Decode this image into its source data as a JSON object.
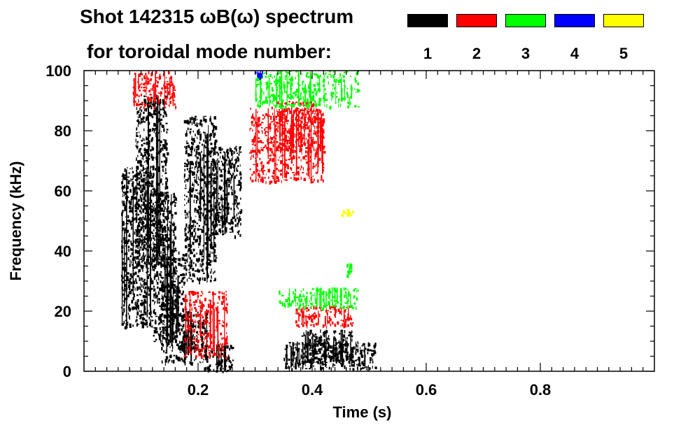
{
  "chart_data": {
    "type": "heatmap",
    "title_line1": "Shot 142315 ωB(ω) spectrum",
    "title_line2": "for toroidal mode number:",
    "xlabel": "Time (s)",
    "ylabel": "Frequency (kHz)",
    "xlim": [
      0.0,
      1.0
    ],
    "ylim": [
      0,
      100
    ],
    "x_ticks": [
      0.2,
      0.4,
      0.6,
      0.8
    ],
    "x_tick_labels": [
      "0.2",
      "0.4",
      "0.6",
      "0.8"
    ],
    "y_ticks": [
      0,
      20,
      40,
      60,
      80,
      100
    ],
    "y_tick_labels": [
      "0",
      "20",
      "40",
      "60",
      "80",
      "100"
    ],
    "grid": false,
    "legend_position": "top-right",
    "legend": [
      {
        "label": "1",
        "color": "#000000"
      },
      {
        "label": "2",
        "color": "#ff0000"
      },
      {
        "label": "3",
        "color": "#00ff00"
      },
      {
        "label": "4",
        "color": "#0000ff"
      },
      {
        "label": "5",
        "color": "#ffff00"
      }
    ],
    "regions": [
      {
        "mode": 1,
        "t": [
          0.065,
          0.12
        ],
        "f": [
          15,
          68
        ]
      },
      {
        "mode": 1,
        "t": [
          0.09,
          0.145
        ],
        "f": [
          35,
          92
        ]
      },
      {
        "mode": 1,
        "t": [
          0.12,
          0.16
        ],
        "f": [
          10,
          60
        ]
      },
      {
        "mode": 1,
        "t": [
          0.135,
          0.175
        ],
        "f": [
          3,
          40
        ]
      },
      {
        "mode": 1,
        "t": [
          0.175,
          0.23
        ],
        "f": [
          30,
          85
        ]
      },
      {
        "mode": 1,
        "t": [
          0.22,
          0.275
        ],
        "f": [
          45,
          75
        ]
      },
      {
        "mode": 1,
        "t": [
          0.17,
          0.215
        ],
        "f": [
          3,
          20
        ]
      },
      {
        "mode": 1,
        "t": [
          0.21,
          0.26
        ],
        "f": [
          0,
          9
        ]
      },
      {
        "mode": 1,
        "t": [
          0.35,
          0.51
        ],
        "f": [
          1,
          10
        ]
      },
      {
        "mode": 1,
        "t": [
          0.38,
          0.47
        ],
        "f": [
          3,
          14
        ]
      },
      {
        "mode": 2,
        "t": [
          0.085,
          0.16
        ],
        "f": [
          88,
          100
        ]
      },
      {
        "mode": 2,
        "t": [
          0.29,
          0.42
        ],
        "f": [
          63,
          88
        ]
      },
      {
        "mode": 2,
        "t": [
          0.335,
          0.42
        ],
        "f": [
          73,
          90
        ]
      },
      {
        "mode": 2,
        "t": [
          0.175,
          0.25
        ],
        "f": [
          5,
          27
        ]
      },
      {
        "mode": 2,
        "t": [
          0.37,
          0.47
        ],
        "f": [
          15,
          22
        ]
      },
      {
        "mode": 3,
        "t": [
          0.3,
          0.48
        ],
        "f": [
          88,
          100
        ]
      },
      {
        "mode": 3,
        "t": [
          0.34,
          0.48
        ],
        "f": [
          21,
          28
        ]
      },
      {
        "mode": 3,
        "t": [
          0.46,
          0.47
        ],
        "f": [
          32,
          36
        ]
      },
      {
        "mode": 4,
        "t": [
          0.3,
          0.315
        ],
        "f": [
          98,
          100
        ]
      },
      {
        "mode": 5,
        "t": [
          0.45,
          0.47
        ],
        "f": [
          52,
          54
        ]
      }
    ]
  }
}
